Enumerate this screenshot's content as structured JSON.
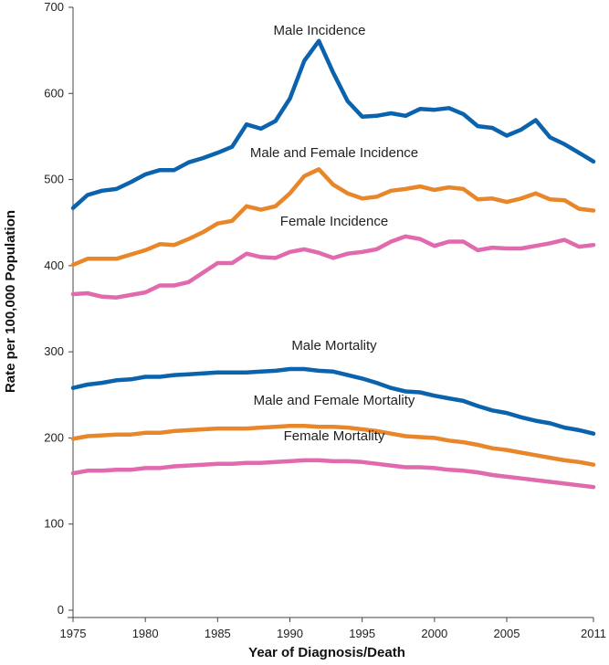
{
  "chart_data": {
    "type": "line",
    "title": "",
    "xlabel": "Year of Diagnosis/Death",
    "ylabel": "Rate per 100,000 Population",
    "xlim": [
      1975,
      2011
    ],
    "ylim": [
      0,
      700
    ],
    "x_ticks": [
      1975,
      1980,
      1985,
      1990,
      1995,
      2000,
      2005,
      2011
    ],
    "y_ticks": [
      0,
      100,
      200,
      300,
      400,
      500,
      600,
      700
    ],
    "grid": false,
    "legend": "none",
    "x": [
      1975,
      1976,
      1977,
      1978,
      1979,
      1980,
      1981,
      1982,
      1983,
      1984,
      1985,
      1986,
      1987,
      1988,
      1989,
      1990,
      1991,
      1992,
      1993,
      1994,
      1995,
      1996,
      1997,
      1998,
      1999,
      2000,
      2001,
      2002,
      2003,
      2004,
      2005,
      2006,
      2007,
      2008,
      2009,
      2010,
      2011
    ],
    "series": [
      {
        "name": "Male Incidence",
        "color": "#0b63ad",
        "values": [
          467,
          482,
          487,
          489,
          497,
          506,
          511,
          511,
          520,
          525,
          531,
          538,
          564,
          559,
          568,
          594,
          638,
          661,
          624,
          591,
          573,
          574,
          577,
          574,
          582,
          581,
          583,
          576,
          562,
          560,
          551,
          558,
          569,
          549,
          541,
          531,
          521
        ]
      },
      {
        "name": "Male and Female Incidence",
        "color": "#e8862a",
        "values": [
          401,
          408,
          408,
          408,
          413,
          418,
          425,
          424,
          431,
          439,
          449,
          452,
          469,
          465,
          469,
          484,
          504,
          512,
          494,
          484,
          478,
          480,
          487,
          489,
          492,
          488,
          491,
          489,
          477,
          478,
          474,
          478,
          484,
          477,
          476,
          466,
          464
        ]
      },
      {
        "name": "Female Incidence",
        "color": "#e06aad",
        "values": [
          367,
          368,
          364,
          363,
          366,
          369,
          377,
          377,
          381,
          392,
          403,
          403,
          414,
          410,
          409,
          416,
          419,
          415,
          409,
          414,
          416,
          419,
          428,
          434,
          431,
          423,
          428,
          428,
          418,
          421,
          420,
          420,
          423,
          426,
          430,
          422,
          424
        ]
      },
      {
        "name": "Male Mortality",
        "color": "#0b63ad",
        "values": [
          258,
          262,
          264,
          267,
          268,
          271,
          271,
          273,
          274,
          275,
          276,
          276,
          276,
          277,
          278,
          280,
          280,
          278,
          277,
          273,
          269,
          264,
          258,
          254,
          253,
          249,
          246,
          243,
          237,
          232,
          229,
          224,
          220,
          217,
          212,
          209,
          205
        ]
      },
      {
        "name": "Male and Female Mortality",
        "color": "#e8862a",
        "values": [
          199,
          202,
          203,
          204,
          204,
          206,
          206,
          208,
          209,
          210,
          211,
          211,
          211,
          212,
          213,
          214,
          214,
          213,
          213,
          212,
          210,
          208,
          205,
          202,
          201,
          200,
          197,
          195,
          192,
          188,
          186,
          183,
          180,
          177,
          174,
          172,
          169
        ]
      },
      {
        "name": "Female Mortality",
        "color": "#e06aad",
        "values": [
          159,
          162,
          162,
          163,
          163,
          165,
          165,
          167,
          168,
          169,
          170,
          170,
          171,
          171,
          172,
          173,
          174,
          174,
          173,
          173,
          172,
          170,
          168,
          166,
          166,
          165,
          163,
          162,
          160,
          157,
          155,
          153,
          151,
          149,
          147,
          145,
          143
        ]
      }
    ]
  }
}
